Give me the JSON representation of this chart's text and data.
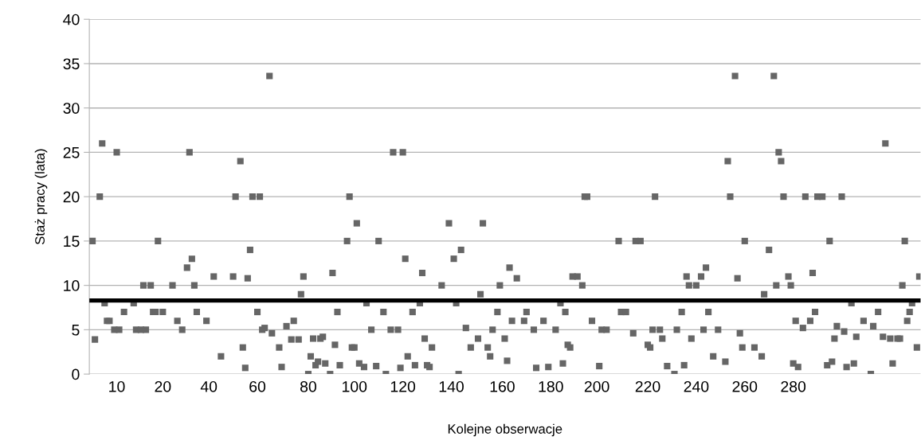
{
  "chart_data": {
    "type": "scatter",
    "xlabel": "Kolejne obserwacje",
    "ylabel": "Staż pracy (lata)",
    "ylim": [
      0,
      40
    ],
    "yticks": [
      0,
      5,
      10,
      15,
      20,
      25,
      30,
      35,
      40
    ],
    "grid": "y",
    "marker": "square",
    "ref_lines": [
      {
        "axis": "y",
        "value": 8.3,
        "color": "#000000",
        "line_style": "solid"
      }
    ],
    "categories": [
      null,
      null,
      null,
      null,
      null,
      null,
      null,
      null,
      null,
      null,
      null,
      "10",
      null,
      null,
      null,
      null,
      null,
      null,
      null,
      null,
      null,
      null,
      null,
      null,
      null,
      null,
      null,
      null,
      null,
      null,
      "20",
      null,
      null,
      null,
      null,
      null,
      null,
      null,
      null,
      null,
      null,
      null,
      null,
      null,
      null,
      null,
      null,
      null,
      null,
      "40",
      null,
      null,
      null,
      null,
      null,
      null,
      null,
      null,
      null,
      null,
      null,
      null,
      null,
      null,
      null,
      null,
      null,
      null,
      null,
      "60",
      null,
      null,
      null,
      null,
      null,
      null,
      null,
      null,
      null,
      null,
      null,
      null,
      null,
      null,
      null,
      null,
      null,
      null,
      null,
      null,
      "80",
      null,
      null,
      null,
      null,
      null,
      null,
      null,
      null,
      null,
      null,
      null,
      null,
      null,
      null,
      null,
      null,
      null,
      null,
      "100",
      null,
      null,
      null,
      null,
      null,
      null,
      null,
      null,
      null,
      null,
      null,
      null,
      null,
      null,
      null,
      null,
      null,
      null,
      null,
      "120",
      null,
      null,
      null,
      null,
      null,
      null,
      null,
      null,
      null,
      null,
      null,
      null,
      null,
      null,
      null,
      null,
      null,
      null,
      null,
      "140",
      null,
      null,
      null,
      null,
      null,
      null,
      null,
      null,
      null,
      null,
      null,
      null,
      null,
      null,
      null,
      null,
      null,
      null,
      null,
      null,
      "160",
      null,
      null,
      null,
      null,
      null,
      null,
      null,
      null,
      null,
      null,
      null,
      null,
      null,
      null,
      null,
      null,
      null,
      null,
      null,
      "180",
      null,
      null,
      null,
      null,
      null,
      null,
      null,
      null,
      null,
      null,
      null,
      null,
      null,
      null,
      null,
      null,
      null,
      null,
      "200",
      null,
      null,
      null,
      null,
      null,
      null,
      null,
      null,
      null,
      null,
      null,
      null,
      null,
      null,
      null,
      null,
      null,
      null,
      null,
      null,
      "220",
      null,
      null,
      null,
      null,
      null,
      null,
      null,
      null,
      null,
      null,
      null,
      null,
      null,
      null,
      null,
      null,
      null,
      null,
      null,
      "240",
      null,
      null,
      null,
      null,
      null,
      null,
      null,
      null,
      null,
      null,
      null,
      null,
      null,
      null,
      null,
      null,
      null,
      null,
      null,
      "260",
      null,
      null,
      null,
      null,
      null,
      null,
      null,
      null,
      null,
      null,
      null,
      null,
      null,
      null,
      null,
      null,
      null,
      null,
      null,
      "280",
      null,
      null,
      null,
      null,
      null,
      null,
      null,
      null,
      null,
      null,
      null,
      null,
      null,
      null,
      null,
      null,
      null,
      null,
      null,
      null,
      null,
      null,
      null,
      null,
      null,
      null,
      null,
      null,
      null,
      null,
      null,
      null,
      null,
      null,
      null,
      null,
      null,
      null,
      null,
      null,
      null,
      null,
      null,
      null,
      null,
      null,
      null,
      null,
      null,
      null,
      null,
      null
    ],
    "series": [
      {
        "color": "#666666",
        "values": [
          null,
          15,
          3.9,
          null,
          20,
          26,
          8,
          6,
          6,
          null,
          5,
          25,
          5,
          null,
          7,
          null,
          null,
          null,
          8,
          5,
          null,
          5,
          10,
          5,
          null,
          10,
          7,
          7,
          15,
          null,
          7,
          null,
          null,
          null,
          10,
          null,
          6,
          null,
          5,
          null,
          12,
          25,
          13,
          10,
          7,
          null,
          null,
          null,
          6,
          null,
          null,
          11,
          null,
          null,
          2,
          null,
          null,
          null,
          null,
          11,
          20,
          null,
          24,
          3,
          0.7,
          10.8,
          14,
          20,
          null,
          7,
          20,
          5,
          5.2,
          null,
          33.6,
          4.6,
          null,
          null,
          3,
          0.8,
          null,
          5.4,
          null,
          3.9,
          6,
          null,
          3.9,
          9,
          11,
          null,
          0,
          2,
          4,
          1,
          1.4,
          4,
          4.2,
          1.2,
          null,
          0,
          11.4,
          3.3,
          7,
          1,
          null,
          null,
          15,
          20,
          3,
          3,
          17,
          1.2,
          null,
          0.8,
          8,
          null,
          5,
          null,
          0.9,
          15,
          null,
          7,
          0,
          null,
          5,
          25,
          null,
          5,
          0.7,
          25,
          13,
          2,
          null,
          7,
          1,
          null,
          8,
          11.4,
          4,
          1,
          0.8,
          3,
          null,
          null,
          null,
          10,
          null,
          null,
          17,
          null,
          13,
          8,
          0,
          14,
          null,
          5.2,
          null,
          3,
          null,
          null,
          4,
          9,
          17,
          null,
          3,
          2,
          5,
          null,
          7,
          10,
          null,
          4,
          1.5,
          12,
          6,
          null,
          10.8,
          null,
          null,
          6,
          7,
          null,
          null,
          5,
          0.7,
          null,
          null,
          6,
          null,
          0.8,
          null,
          null,
          5,
          null,
          8,
          1.2,
          7,
          3.3,
          3,
          11,
          null,
          11,
          null,
          10,
          20,
          20,
          null,
          6,
          null,
          null,
          0.9,
          5,
          null,
          5,
          null,
          null,
          null,
          null,
          15,
          7,
          null,
          7,
          null,
          null,
          4.6,
          15,
          null,
          15,
          null,
          null,
          3.3,
          3,
          5,
          20,
          null,
          5,
          4,
          null,
          0.9,
          null,
          null,
          0,
          5,
          null,
          7,
          1,
          11,
          10,
          4,
          null,
          10,
          null,
          11,
          5,
          12,
          7,
          null,
          2,
          null,
          5,
          null,
          null,
          1.4,
          24,
          20,
          null,
          33.6,
          10.8,
          4.6,
          3,
          15,
          null,
          null,
          null,
          3,
          null,
          null,
          2,
          9,
          null,
          14,
          null,
          33.6,
          10,
          25,
          24,
          20,
          null,
          11,
          10,
          1.2,
          6,
          0.8,
          null,
          5.2,
          20,
          null,
          6,
          11.4,
          7,
          20,
          null,
          20,
          null,
          1,
          15,
          1.4,
          4,
          5.4,
          null,
          20,
          4.8,
          0.8,
          null,
          8,
          1.2,
          4.2,
          null,
          null,
          6,
          null,
          null,
          0,
          5.4,
          null,
          7,
          null,
          4.2,
          26,
          null,
          4,
          1.2,
          null,
          4,
          4,
          10,
          15,
          6,
          7,
          8,
          null,
          3,
          11
        ]
      }
    ]
  }
}
